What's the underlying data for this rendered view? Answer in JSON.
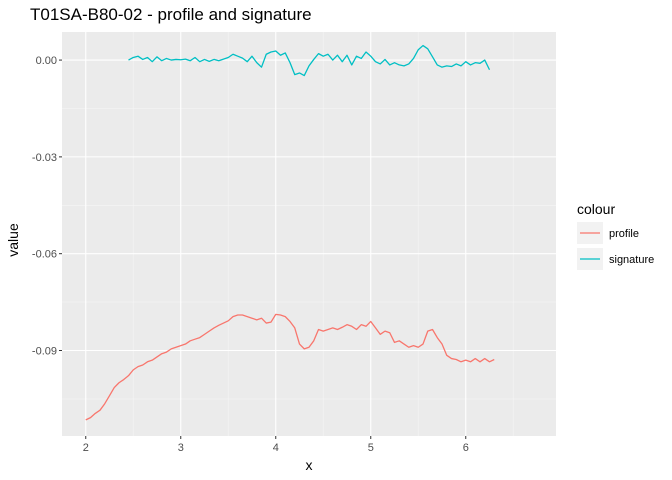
{
  "chart_data": {
    "type": "line",
    "title": "T01SA-B80-02 - profile and signature",
    "xlabel": "x",
    "ylabel": "value",
    "xlim": [
      1.75,
      6.95
    ],
    "ylim": [
      -0.1165,
      0.0087
    ],
    "x_ticks": [
      2,
      3,
      4,
      5,
      6
    ],
    "x_tick_labels": [
      "2",
      "3",
      "4",
      "5",
      "6"
    ],
    "y_ticks": [
      0.0,
      -0.03,
      -0.06,
      -0.09
    ],
    "y_tick_labels": [
      "0.00",
      "-0.03",
      "-0.06",
      "-0.09"
    ],
    "grid": true,
    "legend": {
      "title": "colour",
      "position": "right",
      "entries": [
        "profile",
        "signature"
      ]
    },
    "series": [
      {
        "name": "profile",
        "color": "#F8766D",
        "x": [
          2.0,
          2.05,
          2.1,
          2.15,
          2.2,
          2.25,
          2.3,
          2.35,
          2.4,
          2.45,
          2.5,
          2.55,
          2.6,
          2.65,
          2.7,
          2.75,
          2.8,
          2.85,
          2.9,
          2.95,
          3.0,
          3.05,
          3.1,
          3.15,
          3.2,
          3.25,
          3.3,
          3.35,
          3.4,
          3.45,
          3.5,
          3.55,
          3.6,
          3.65,
          3.7,
          3.75,
          3.8,
          3.85,
          3.9,
          3.95,
          4.0,
          4.05,
          4.1,
          4.15,
          4.2,
          4.25,
          4.3,
          4.35,
          4.4,
          4.45,
          4.5,
          4.55,
          4.6,
          4.65,
          4.7,
          4.75,
          4.8,
          4.85,
          4.9,
          4.95,
          5.0,
          5.05,
          5.1,
          5.15,
          5.2,
          5.25,
          5.3,
          5.35,
          5.4,
          5.45,
          5.5,
          5.55,
          5.6,
          5.65,
          5.7,
          5.75,
          5.8,
          5.85,
          5.9,
          5.95,
          6.0,
          6.05,
          6.1,
          6.15,
          6.2,
          6.25,
          6.3
        ],
        "values": [
          -0.1115,
          -0.1108,
          -0.1095,
          -0.1085,
          -0.1065,
          -0.104,
          -0.1015,
          -0.1,
          -0.099,
          -0.0978,
          -0.096,
          -0.095,
          -0.0945,
          -0.0935,
          -0.093,
          -0.092,
          -0.091,
          -0.0905,
          -0.0895,
          -0.089,
          -0.0885,
          -0.088,
          -0.087,
          -0.0865,
          -0.086,
          -0.085,
          -0.084,
          -0.083,
          -0.0822,
          -0.0815,
          -0.0808,
          -0.0795,
          -0.079,
          -0.079,
          -0.0795,
          -0.08,
          -0.0805,
          -0.08,
          -0.0815,
          -0.0812,
          -0.0788,
          -0.079,
          -0.0795,
          -0.081,
          -0.083,
          -0.088,
          -0.0895,
          -0.089,
          -0.087,
          -0.0835,
          -0.084,
          -0.0835,
          -0.083,
          -0.0835,
          -0.0828,
          -0.082,
          -0.0825,
          -0.0835,
          -0.082,
          -0.0825,
          -0.081,
          -0.083,
          -0.085,
          -0.084,
          -0.0845,
          -0.0875,
          -0.087,
          -0.088,
          -0.089,
          -0.0885,
          -0.089,
          -0.088,
          -0.084,
          -0.0835,
          -0.086,
          -0.088,
          -0.0915,
          -0.0925,
          -0.0928,
          -0.0935,
          -0.093,
          -0.0935,
          -0.0925,
          -0.0935,
          -0.0925,
          -0.0935,
          -0.0928
        ]
      },
      {
        "name": "signature",
        "color": "#00BFC4",
        "x": [
          2.45,
          2.5,
          2.55,
          2.6,
          2.65,
          2.7,
          2.75,
          2.8,
          2.85,
          2.9,
          2.95,
          3.0,
          3.05,
          3.1,
          3.15,
          3.2,
          3.25,
          3.3,
          3.35,
          3.4,
          3.45,
          3.5,
          3.55,
          3.6,
          3.65,
          3.7,
          3.75,
          3.8,
          3.85,
          3.9,
          3.95,
          4.0,
          4.05,
          4.1,
          4.15,
          4.2,
          4.25,
          4.3,
          4.35,
          4.4,
          4.45,
          4.5,
          4.55,
          4.6,
          4.65,
          4.7,
          4.75,
          4.8,
          4.85,
          4.9,
          4.95,
          5.0,
          5.05,
          5.1,
          5.15,
          5.2,
          5.25,
          5.3,
          5.35,
          5.4,
          5.45,
          5.5,
          5.55,
          5.6,
          5.65,
          5.7,
          5.75,
          5.8,
          5.85,
          5.9,
          5.95,
          6.0,
          6.05,
          6.1,
          6.15,
          6.2,
          6.25
        ],
        "values": [
          0.0,
          0.0008,
          0.0012,
          0.0002,
          0.0008,
          -0.0005,
          0.001,
          -0.0002,
          0.0005,
          0.0,
          0.0002,
          0.0001,
          0.0003,
          -0.0002,
          0.0008,
          -0.0005,
          0.0002,
          -0.0004,
          0.0002,
          -0.0002,
          0.0003,
          0.0008,
          0.0018,
          0.0012,
          0.0006,
          -0.0005,
          0.0012,
          -0.0008,
          -0.0022,
          0.0018,
          0.0025,
          0.0028,
          0.0015,
          0.0022,
          -0.0008,
          -0.0045,
          -0.004,
          -0.0048,
          -0.0018,
          0.0002,
          0.002,
          0.0012,
          0.0018,
          0.0,
          0.0015,
          -0.0005,
          0.0015,
          -0.0015,
          0.0012,
          0.0005,
          0.0025,
          0.0012,
          -0.0005,
          -0.0012,
          0.0002,
          -0.0015,
          -0.0008,
          -0.0015,
          -0.0018,
          -0.0012,
          0.0005,
          0.0032,
          0.0045,
          0.0035,
          0.001,
          -0.0015,
          -0.0022,
          -0.0018,
          -0.002,
          -0.0012,
          -0.0018,
          -0.0005,
          -0.0015,
          -0.0008,
          -0.001,
          0.0,
          -0.003
        ]
      }
    ]
  }
}
